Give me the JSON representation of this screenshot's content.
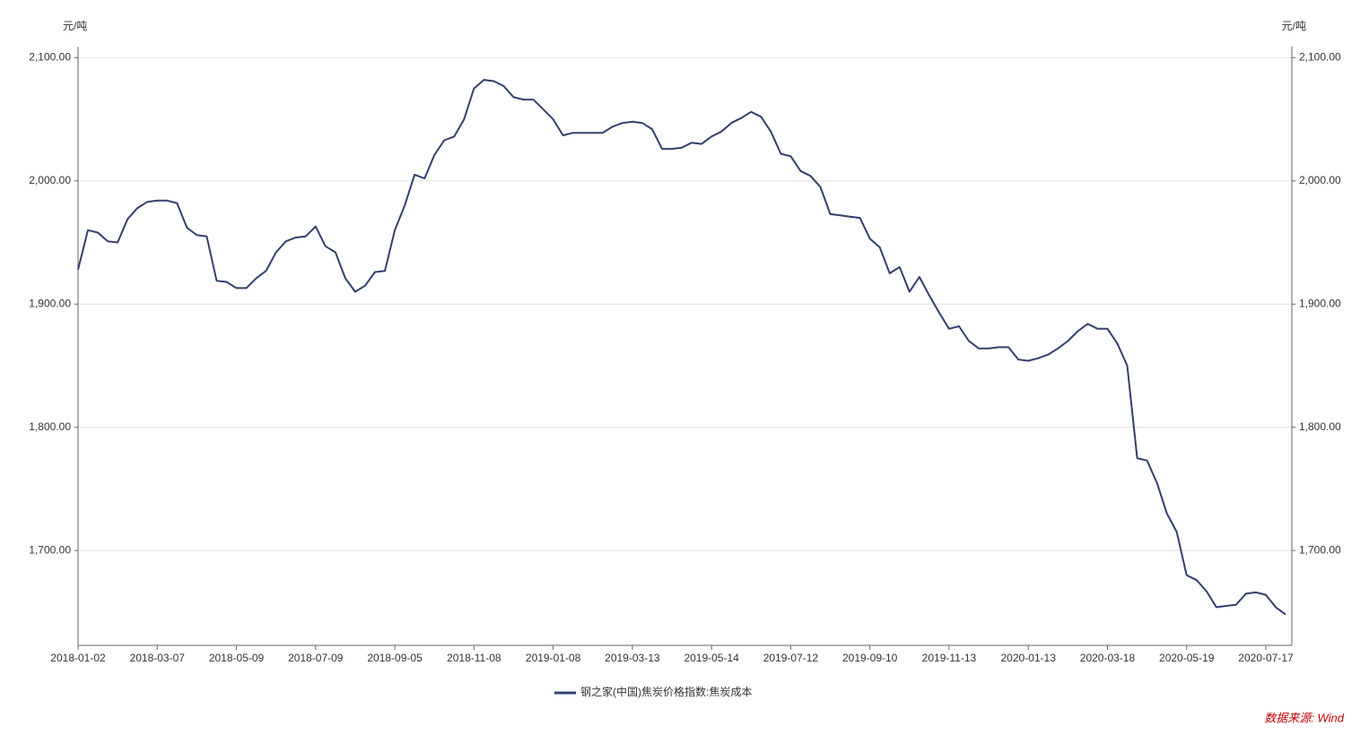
{
  "chart_data": {
    "type": "line",
    "ylabel": "元/吨",
    "y2label": "元/吨",
    "categories": [
      "2018-01-02",
      null,
      null,
      null,
      null,
      null,
      null,
      null,
      "2018-03-07",
      null,
      null,
      null,
      null,
      null,
      null,
      null,
      "2018-05-09",
      null,
      null,
      null,
      null,
      null,
      null,
      null,
      "2018-07-09",
      null,
      null,
      null,
      null,
      null,
      null,
      null,
      "2018-09-05",
      null,
      null,
      null,
      null,
      null,
      null,
      null,
      "2018-11-08",
      null,
      null,
      null,
      null,
      null,
      null,
      null,
      "2019-01-08",
      null,
      null,
      null,
      null,
      null,
      null,
      null,
      "2019-03-13",
      null,
      null,
      null,
      null,
      null,
      null,
      null,
      "2019-05-14",
      null,
      null,
      null,
      null,
      null,
      null,
      null,
      "2019-07-12",
      null,
      null,
      null,
      null,
      null,
      null,
      null,
      "2019-09-10",
      null,
      null,
      null,
      null,
      null,
      null,
      null,
      "2019-11-13",
      null,
      null,
      null,
      null,
      null,
      null,
      null,
      "2020-01-13",
      null,
      null,
      null,
      null,
      null,
      null,
      null,
      "2020-03-18",
      null,
      null,
      null,
      null,
      null,
      null,
      null,
      "2020-05-19",
      null,
      null,
      null,
      null,
      null,
      null,
      null,
      "2020-07-17",
      null,
      null
    ],
    "series": [
      {
        "name": "钢之家(中国)焦炭价格指数:焦炭成本",
        "color": "#33406e",
        "axis": "y",
        "values": [
          1928,
          1960,
          1958,
          1951,
          1950,
          1969,
          1978,
          1983,
          1984,
          1984,
          1982,
          1962,
          1956,
          1955,
          1919,
          1918,
          1913,
          1913,
          1921,
          1927,
          1942,
          1951,
          1954,
          1955,
          1963,
          1947,
          1942,
          1921,
          1910,
          1915,
          1926,
          1927,
          1960,
          1980,
          2005,
          2002,
          2021,
          2033,
          2036,
          2050,
          2075,
          2082,
          2081,
          2077,
          2068,
          2066,
          2066,
          2058,
          2050,
          2037,
          2039,
          2039,
          2039,
          2039,
          2044,
          2047,
          2048,
          2047,
          2042,
          2026,
          2026,
          2027,
          2031,
          2030,
          2036,
          2040,
          2047,
          2051,
          2056,
          2052,
          2040,
          2022,
          2020,
          2008,
          2004,
          1995,
          1973,
          1972,
          1971,
          1970,
          1953,
          1946,
          1925,
          1930,
          1910,
          1922,
          1907,
          1893,
          1880,
          1882,
          1870,
          1864,
          1864,
          1865,
          1865,
          1855,
          1854,
          1856,
          1859,
          1864,
          1870,
          1878,
          1884,
          1880,
          1880,
          1868,
          1850,
          1775,
          1773,
          1755,
          1730,
          1715,
          1680,
          1676,
          1667,
          1654,
          1655,
          1656,
          1665,
          1666,
          1664,
          1654,
          1648
        ]
      }
    ],
    "ylim": [
      1623,
      2109
    ],
    "yticks": [
      {
        "value": 1700,
        "label": "1,700.00"
      },
      {
        "value": 1800,
        "label": "1,800.00"
      },
      {
        "value": 1900,
        "label": "1,900.00"
      },
      {
        "value": 2000,
        "label": "2,000.00"
      },
      {
        "value": 2100,
        "label": "2,100.00"
      }
    ],
    "y2lim": [
      1623,
      2109
    ],
    "y2ticks": [
      {
        "value": 1700,
        "label": "1,700.00"
      },
      {
        "value": 1800,
        "label": "1,800.00"
      },
      {
        "value": 1900,
        "label": "1,900.00"
      },
      {
        "value": 2000,
        "label": "2,000.00"
      },
      {
        "value": 2100,
        "label": "2,100.00"
      }
    ],
    "grid": true,
    "legend": "bottom",
    "source": "数据来源: Wind"
  }
}
